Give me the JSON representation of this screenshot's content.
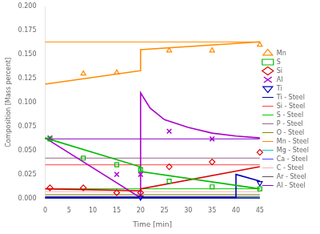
{
  "chart_data": {
    "type": "line",
    "xlabel": "Time [min]",
    "ylabel": "Composition [Mass percent]",
    "xlim": [
      0,
      45
    ],
    "ylim": [
      0,
      0.2
    ],
    "xticks": [
      0,
      5,
      10,
      15,
      20,
      25,
      30,
      35,
      40,
      45
    ],
    "yticks": [
      {
        "value": 0,
        "label": "0.000"
      },
      0.025,
      {
        "value": 0.05,
        "label": "0.050"
      },
      0.075,
      {
        "value": 0.1,
        "label": "0.100"
      },
      0.125,
      {
        "value": 0.15,
        "label": "0.150"
      },
      0.175,
      {
        "value": 0.2,
        "label": "0.200"
      }
    ],
    "grid": false,
    "legend": "right",
    "series": [
      {
        "name": "Ti - Steel",
        "type": "line",
        "color": "#00008B",
        "x": [
          0,
          45
        ],
        "values": [
          0.0005,
          0.0005
        ]
      },
      {
        "name": "Si - Steel",
        "type": "line",
        "color": "#FF4444",
        "x": [
          0,
          45
        ],
        "values": [
          0.035,
          0.035
        ]
      },
      {
        "name": "S - Steel",
        "type": "line",
        "color": "#00CC00",
        "x": [
          0,
          45
        ],
        "values": [
          0.01,
          0.01
        ]
      },
      {
        "name": "P - Steel",
        "type": "line",
        "color": "#996688",
        "x": [
          0,
          45
        ],
        "values": [
          0.042,
          0.042
        ]
      },
      {
        "name": "O - Steel",
        "type": "line",
        "color": "#888800",
        "x": [
          0,
          45
        ],
        "values": [
          0.004,
          0.004
        ]
      },
      {
        "name": "Mn - Steel",
        "type": "line",
        "color": "#FF8C00",
        "x": [
          0,
          45
        ],
        "values": [
          0.163,
          0.163
        ]
      },
      {
        "name": "Mg - Steel",
        "type": "line",
        "color": "#00CCCC",
        "x": [
          0,
          45
        ],
        "values": [
          0.0008,
          0.0008
        ]
      },
      {
        "name": "Ca - Steel",
        "type": "line",
        "color": "#4444FF",
        "x": [
          0,
          45
        ],
        "values": [
          0.0003,
          0.0003
        ]
      },
      {
        "name": "C - Steel",
        "type": "line",
        "color": "#FFAAAA",
        "x": [
          0,
          45
        ],
        "values": [
          0.007,
          0.007
        ]
      },
      {
        "name": "Ar - Steel",
        "type": "line",
        "color": "#555555",
        "x": [
          0,
          45
        ],
        "values": [
          0.002,
          0.002
        ]
      },
      {
        "name": "Al - Steel",
        "type": "line",
        "color": "#8800CC",
        "x": [
          0,
          45
        ],
        "values": [
          0.062,
          0.062
        ]
      },
      {
        "type": "line",
        "color": "#FF8C00",
        "x": [
          0,
          19.9,
          20,
          45
        ],
        "values": [
          0.119,
          0.133,
          0.155,
          0.163
        ]
      },
      {
        "type": "line",
        "color": "#00BB00",
        "x": [
          0,
          19.9,
          20,
          45
        ],
        "values": [
          0.063,
          0.033,
          0.028,
          0.01
        ]
      },
      {
        "type": "line",
        "color": "#DD0000",
        "x": [
          0,
          19.9,
          20,
          45
        ],
        "values": [
          0.01,
          0.008,
          0.01,
          0.033
        ]
      },
      {
        "type": "line",
        "color": "#AA00CC",
        "x": [
          0,
          19.9,
          20,
          22,
          25,
          30,
          35,
          40,
          45
        ],
        "values": [
          0.063,
          0.001,
          0.11,
          0.094,
          0.082,
          0.074,
          0.068,
          0.065,
          0.063
        ]
      },
      {
        "type": "line",
        "color": "#0000BB",
        "x": [
          0,
          39.9,
          40,
          45
        ],
        "values": [
          0.001,
          0.001,
          0.025,
          0.018
        ]
      },
      {
        "name": "Mn",
        "type": "scatter",
        "color": "#FF8C00",
        "marker": "triangle",
        "x": [
          8,
          15,
          26,
          35,
          45
        ],
        "values": [
          0.13,
          0.131,
          0.154,
          0.154,
          0.16
        ]
      },
      {
        "name": "S",
        "type": "scatter",
        "color": "#00BB00",
        "marker": "square",
        "x": [
          1,
          8,
          15,
          20,
          26,
          35,
          45
        ],
        "values": [
          0.062,
          0.042,
          0.035,
          0.03,
          0.018,
          0.012,
          0.01
        ]
      },
      {
        "name": "Si",
        "type": "scatter",
        "color": "#DD0000",
        "marker": "diamond",
        "x": [
          1,
          8,
          15,
          20,
          26,
          35,
          45
        ],
        "values": [
          0.011,
          0.011,
          0.006,
          0.006,
          0.033,
          0.038,
          0.048
        ]
      },
      {
        "name": "Al",
        "type": "scatter",
        "color": "#AA00CC",
        "marker": "x",
        "x": [
          1,
          15,
          20,
          26,
          35
        ],
        "values": [
          0.063,
          0.025,
          0.025,
          0.07,
          0.062
        ]
      },
      {
        "name": "Ti",
        "type": "scatter",
        "color": "#0000BB",
        "marker": "triangle_down",
        "x": [
          20,
          45
        ],
        "values": [
          0.001,
          0.016
        ]
      }
    ]
  }
}
